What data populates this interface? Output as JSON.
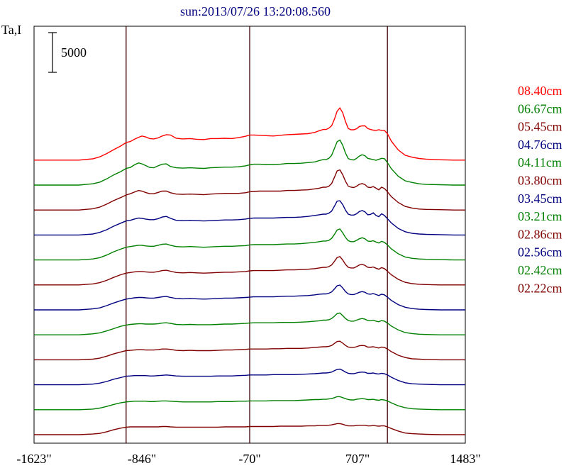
{
  "chart_data": {
    "type": "line",
    "title": "sun:2013/07/26 13:20:08.560",
    "ylabel": "Ta,I",
    "scale_bar_label": "5000",
    "scale_bar_value": 5000,
    "xlim": [
      -1623,
      1483
    ],
    "x_ticks": [
      {
        "value": -1623,
        "label": "-1623\""
      },
      {
        "value": -846,
        "label": "-846\""
      },
      {
        "value": -70,
        "label": "-70\""
      },
      {
        "value": 707,
        "label": "707\""
      },
      {
        "value": 1483,
        "label": "1483\""
      }
    ],
    "vertical_lines": [
      -960,
      -70,
      922
    ],
    "x": [
      -1623,
      -1500,
      -1400,
      -1300,
      -1200,
      -1150,
      -1100,
      -1050,
      -1000,
      -960,
      -930,
      -900,
      -870,
      -846,
      -820,
      -790,
      -760,
      -730,
      -700,
      -670,
      -640,
      -600,
      -550,
      -500,
      -450,
      -400,
      -350,
      -300,
      -250,
      -200,
      -150,
      -100,
      -70,
      -40,
      0,
      50,
      100,
      150,
      200,
      250,
      300,
      350,
      400,
      430,
      460,
      480,
      500,
      520,
      540,
      560,
      580,
      600,
      620,
      640,
      660,
      680,
      700,
      720,
      740,
      760,
      780,
      800,
      820,
      840,
      860,
      880,
      900,
      922,
      950,
      1000,
      1050,
      1100,
      1150,
      1200,
      1300,
      1400,
      1483
    ],
    "series": [
      {
        "name": "08.40cm",
        "color": "#ff0000",
        "values": [
          0,
          0,
          0,
          0,
          400,
          1000,
          2000,
          3200,
          4300,
          5400,
          5700,
          6400,
          7000,
          7400,
          7100,
          6600,
          6500,
          6800,
          7400,
          7800,
          7700,
          6700,
          6500,
          6600,
          6400,
          6300,
          6600,
          6600,
          6700,
          6600,
          6900,
          7300,
          7700,
          7700,
          7600,
          7500,
          7400,
          7600,
          7800,
          7900,
          8000,
          8100,
          8500,
          9000,
          9400,
          9400,
          9800,
          10500,
          12500,
          15000,
          16000,
          14500,
          11800,
          9700,
          9300,
          9300,
          9600,
          10300,
          10500,
          10500,
          9700,
          9400,
          9200,
          9100,
          9300,
          9100,
          9100,
          8100,
          5800,
          3100,
          1500,
          900,
          500,
          300,
          100,
          0,
          0
        ]
      },
      {
        "name": "06.67cm",
        "color": "#008000",
        "values": [
          0,
          0,
          0,
          0,
          400,
          900,
          1900,
          3100,
          4100,
          5100,
          5400,
          6200,
          6800,
          6500,
          6000,
          5400,
          5300,
          5900,
          6400,
          6500,
          5700,
          5300,
          5200,
          5300,
          5200,
          5100,
          5300,
          5400,
          5500,
          5500,
          5600,
          5900,
          6200,
          6400,
          6400,
          6300,
          6300,
          6400,
          6600,
          6600,
          6700,
          6900,
          7100,
          7500,
          7800,
          7800,
          8200,
          9100,
          11200,
          13300,
          13800,
          12200,
          9800,
          8100,
          7800,
          7700,
          8200,
          8900,
          9300,
          9000,
          8200,
          8000,
          7800,
          7600,
          7900,
          8200,
          8100,
          6900,
          5000,
          2700,
          1300,
          800,
          400,
          200,
          100,
          0,
          0
        ]
      },
      {
        "name": "05.45cm",
        "color": "#800000",
        "values": [
          0,
          0,
          0,
          0,
          400,
          900,
          1800,
          2900,
          3800,
          4600,
          5000,
          5500,
          6000,
          5800,
          5400,
          5000,
          5000,
          5400,
          5800,
          5800,
          5300,
          4900,
          4800,
          4900,
          4800,
          4700,
          4900,
          5000,
          5100,
          5100,
          5100,
          5300,
          5600,
          5700,
          5800,
          5800,
          5800,
          5800,
          6000,
          6000,
          6100,
          6200,
          6500,
          6700,
          7000,
          7000,
          7300,
          8100,
          10000,
          12000,
          12300,
          10800,
          8800,
          7300,
          7000,
          6900,
          7300,
          7900,
          8100,
          7800,
          7000,
          6900,
          7200,
          6700,
          6200,
          7000,
          6600,
          5600,
          4100,
          2300,
          1100,
          600,
          300,
          200,
          100,
          0,
          0
        ]
      },
      {
        "name": "04.76cm",
        "color": "#000080",
        "values": [
          0,
          0,
          0,
          0,
          300,
          800,
          1600,
          2700,
          3600,
          4300,
          4500,
          4900,
          5200,
          5100,
          4900,
          4700,
          4700,
          5000,
          5500,
          5700,
          5100,
          4500,
          4400,
          4500,
          4400,
          4300,
          4400,
          4500,
          4600,
          4600,
          4700,
          4900,
          5100,
          5200,
          5200,
          5200,
          5200,
          5300,
          5400,
          5400,
          5500,
          5700,
          6000,
          6200,
          6400,
          6400,
          6700,
          7300,
          8800,
          10400,
          10500,
          9300,
          7600,
          6400,
          6100,
          6100,
          6500,
          7200,
          7500,
          7100,
          6200,
          6300,
          6800,
          6000,
          5600,
          6500,
          6000,
          5000,
          3700,
          2000,
          1000,
          500,
          300,
          200,
          100,
          0,
          0
        ]
      },
      {
        "name": "04.11cm",
        "color": "#008000",
        "values": [
          0,
          0,
          0,
          0,
          300,
          700,
          1500,
          2500,
          3300,
          3900,
          4100,
          4300,
          4500,
          4500,
          4300,
          4200,
          4200,
          4500,
          4800,
          4900,
          4500,
          4100,
          4000,
          4100,
          4000,
          3900,
          4000,
          4100,
          4200,
          4200,
          4300,
          4400,
          4600,
          4700,
          4700,
          4700,
          4700,
          4800,
          4900,
          4900,
          5000,
          5200,
          5400,
          5600,
          5800,
          5800,
          6000,
          6600,
          7800,
          9200,
          9500,
          8300,
          6900,
          5900,
          5600,
          5600,
          6000,
          6500,
          6800,
          6500,
          5800,
          5700,
          5900,
          5500,
          5200,
          5700,
          5400,
          4600,
          3400,
          1900,
          900,
          500,
          300,
          200,
          100,
          0,
          0
        ]
      },
      {
        "name": "03.80cm",
        "color": "#800000",
        "values": [
          0,
          0,
          0,
          0,
          300,
          700,
          1400,
          2300,
          3100,
          3600,
          3800,
          4000,
          4100,
          4100,
          4000,
          3900,
          3900,
          4100,
          4400,
          4500,
          4200,
          3800,
          3700,
          3800,
          3700,
          3600,
          3700,
          3800,
          3900,
          3900,
          4000,
          4100,
          4300,
          4400,
          4400,
          4400,
          4400,
          4500,
          4600,
          4600,
          4700,
          4800,
          5000,
          5200,
          5400,
          5400,
          5600,
          6100,
          7200,
          8400,
          8700,
          7600,
          6300,
          5400,
          5200,
          5200,
          5600,
          6100,
          6300,
          6000,
          5400,
          5300,
          5500,
          5100,
          4800,
          5300,
          5000,
          4200,
          3100,
          1700,
          800,
          400,
          200,
          100,
          0,
          0,
          0
        ]
      },
      {
        "name": "03.45cm",
        "color": "#000080",
        "values": [
          0,
          0,
          0,
          0,
          300,
          600,
          1300,
          2100,
          2800,
          3300,
          3500,
          3700,
          3800,
          3800,
          3700,
          3600,
          3600,
          3800,
          4000,
          4100,
          3800,
          3500,
          3400,
          3500,
          3400,
          3300,
          3400,
          3500,
          3600,
          3600,
          3700,
          3800,
          3900,
          4000,
          4000,
          4000,
          4000,
          4100,
          4200,
          4200,
          4300,
          4400,
          4600,
          4800,
          4900,
          4900,
          5100,
          5500,
          6400,
          7400,
          7600,
          6700,
          5600,
          4900,
          4700,
          4700,
          5000,
          5400,
          5600,
          5400,
          4900,
          4800,
          5000,
          4700,
          4400,
          4800,
          4600,
          3900,
          2900,
          1600,
          800,
          400,
          200,
          100,
          0,
          0,
          0
        ]
      },
      {
        "name": "03.21cm",
        "color": "#008000",
        "values": [
          0,
          0,
          0,
          0,
          300,
          600,
          1200,
          1900,
          2600,
          3000,
          3200,
          3300,
          3400,
          3400,
          3300,
          3300,
          3300,
          3400,
          3600,
          3700,
          3500,
          3200,
          3100,
          3200,
          3100,
          3100,
          3100,
          3200,
          3300,
          3300,
          3400,
          3500,
          3600,
          3700,
          3700,
          3700,
          3700,
          3800,
          3800,
          3800,
          3900,
          4000,
          4200,
          4300,
          4500,
          4500,
          4600,
          5000,
          5700,
          6500,
          6700,
          5900,
          5000,
          4400,
          4200,
          4200,
          4500,
          4800,
          5000,
          4800,
          4400,
          4300,
          4500,
          4200,
          4000,
          4400,
          4200,
          3600,
          2700,
          1500,
          700,
          400,
          200,
          100,
          0,
          0,
          0
        ]
      },
      {
        "name": "02.86cm",
        "color": "#800000",
        "values": [
          0,
          0,
          0,
          0,
          200,
          500,
          1100,
          1800,
          2400,
          2800,
          2900,
          3000,
          3100,
          3100,
          3000,
          3000,
          3000,
          3100,
          3300,
          3300,
          3200,
          2900,
          2800,
          2900,
          2800,
          2800,
          2800,
          2900,
          3000,
          3000,
          3100,
          3200,
          3300,
          3300,
          3300,
          3300,
          3400,
          3400,
          3500,
          3500,
          3500,
          3600,
          3800,
          3900,
          4000,
          4000,
          4100,
          4400,
          5000,
          5600,
          5700,
          5100,
          4400,
          3900,
          3800,
          3800,
          4000,
          4300,
          4400,
          4300,
          3900,
          3900,
          4000,
          3800,
          3600,
          3900,
          3800,
          3300,
          2500,
          1400,
          700,
          300,
          200,
          100,
          0,
          0,
          0
        ]
      },
      {
        "name": "02.56cm",
        "color": "#000080",
        "values": [
          0,
          0,
          0,
          0,
          200,
          500,
          1000,
          1700,
          2200,
          2600,
          2700,
          2800,
          2800,
          2800,
          2800,
          2700,
          2700,
          2800,
          2900,
          3000,
          2900,
          2700,
          2600,
          2600,
          2600,
          2600,
          2600,
          2700,
          2700,
          2700,
          2800,
          2900,
          3000,
          3000,
          3000,
          3000,
          3100,
          3100,
          3100,
          3100,
          3200,
          3300,
          3400,
          3500,
          3600,
          3600,
          3700,
          3900,
          4300,
          4700,
          4800,
          4400,
          3900,
          3500,
          3400,
          3400,
          3600,
          3800,
          3900,
          3800,
          3500,
          3500,
          3600,
          3400,
          3300,
          3500,
          3400,
          3000,
          2300,
          1300,
          600,
          300,
          200,
          100,
          0,
          0,
          0
        ]
      },
      {
        "name": "02.42cm",
        "color": "#008000",
        "values": [
          0,
          0,
          0,
          0,
          200,
          500,
          1000,
          1600,
          2100,
          2400,
          2500,
          2600,
          2600,
          2600,
          2600,
          2500,
          2500,
          2600,
          2700,
          2700,
          2600,
          2500,
          2400,
          2400,
          2400,
          2400,
          2400,
          2500,
          2500,
          2500,
          2600,
          2600,
          2700,
          2700,
          2700,
          2700,
          2800,
          2800,
          2800,
          2800,
          2900,
          3000,
          3100,
          3100,
          3200,
          3200,
          3300,
          3400,
          3700,
          4000,
          4000,
          3700,
          3400,
          3100,
          3000,
          3000,
          3200,
          3300,
          3400,
          3300,
          3100,
          3100,
          3200,
          3000,
          2900,
          3100,
          3000,
          2700,
          2100,
          1200,
          600,
          300,
          200,
          100,
          0,
          0,
          0
        ]
      },
      {
        "name": "02.22cm",
        "color": "#800000",
        "values": [
          0,
          0,
          0,
          0,
          200,
          400,
          900,
          1500,
          2000,
          2300,
          2400,
          2400,
          2400,
          2400,
          2400,
          2400,
          2400,
          2400,
          2500,
          2500,
          2400,
          2300,
          2300,
          2300,
          2300,
          2300,
          2300,
          2300,
          2400,
          2400,
          2400,
          2400,
          2500,
          2500,
          2500,
          2500,
          2500,
          2600,
          2600,
          2600,
          2600,
          2700,
          2700,
          2800,
          2800,
          2800,
          2900,
          3000,
          3200,
          3400,
          3400,
          3200,
          2900,
          2700,
          2700,
          2700,
          2800,
          2900,
          2900,
          2900,
          2700,
          2700,
          2800,
          2700,
          2600,
          2700,
          2700,
          2400,
          1900,
          1100,
          500,
          300,
          200,
          100,
          0,
          0,
          0
        ]
      }
    ]
  }
}
